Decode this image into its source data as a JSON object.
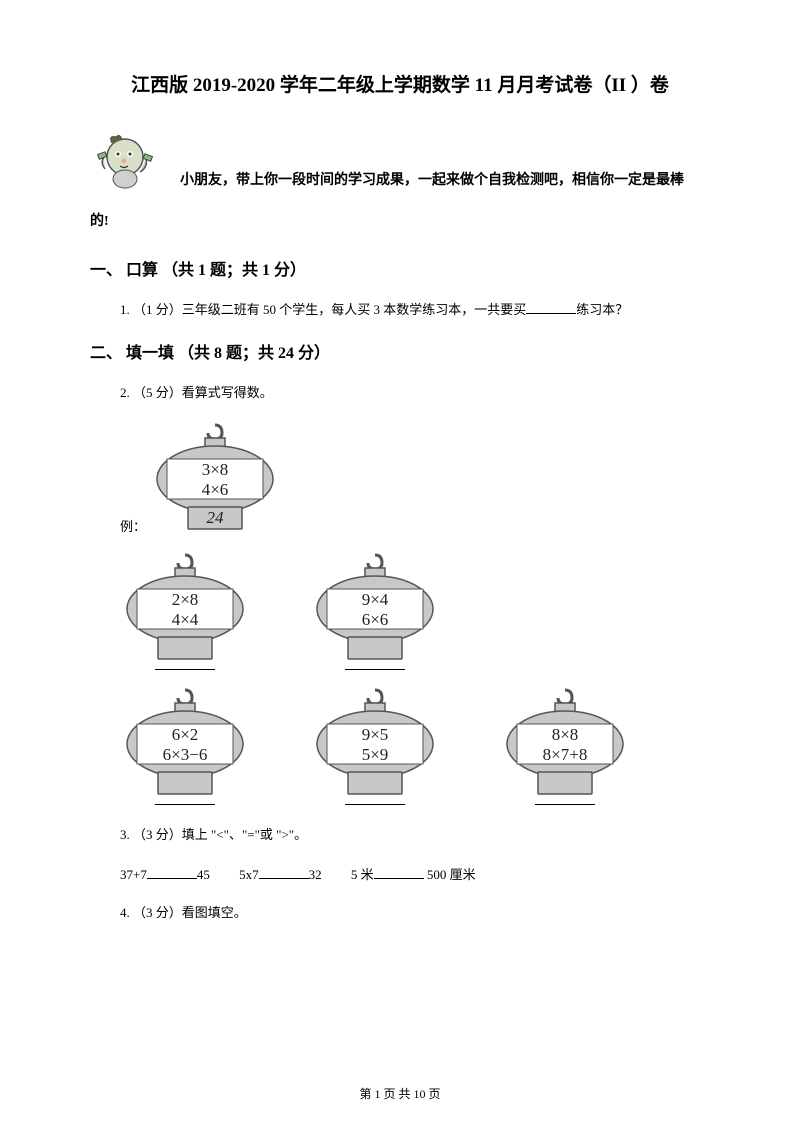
{
  "title": "江西版 2019-2020 学年二年级上学期数学 11 月月考试卷（II ）卷",
  "intro1": "小朋友，带上你一段时间的学习成果，一起来做个自我检测吧，相信你一定是最棒",
  "intro2": "的!",
  "section1": {
    "heading": "一、 口算 （共 1 题；共 1 分）",
    "q1_prefix": "1. （1 分）三年级二班有 50 个学生，每人买 3 本数学练习本，一共要买",
    "q1_suffix": "练习本？"
  },
  "section2": {
    "heading": "二、 填一填 （共 8 题；共 24 分）",
    "q2": "2. （5 分）看算式写得数。",
    "example_label": "例：",
    "lanterns": {
      "example": {
        "line1": "3×8",
        "line2": "4×6",
        "base": "24"
      },
      "a": {
        "line1": "2×8",
        "line2": "4×4"
      },
      "b": {
        "line1": "9×4",
        "line2": "6×6"
      },
      "c": {
        "line1": "6×2",
        "line2": "6×3−6"
      },
      "d": {
        "line1": "9×5",
        "line2": "5×9"
      },
      "e": {
        "line1": "8×8",
        "line2": "8×7+8"
      }
    },
    "q3": "3. （3 分）填上 \"<\"、\"=\"或 \">\"。",
    "compare": {
      "c1a": "37+7",
      "c1b": "45",
      "c2a": "5x7",
      "c2b": "32",
      "c3a": "5 米",
      "c3b": "500 厘米"
    },
    "q4": "4. （3 分）看图填空。"
  },
  "footer": "第 1 页 共 10 页",
  "colors": {
    "lantern_fill": "#c8c8c8",
    "lantern_stroke": "#555555",
    "lantern_text": "#222222"
  }
}
